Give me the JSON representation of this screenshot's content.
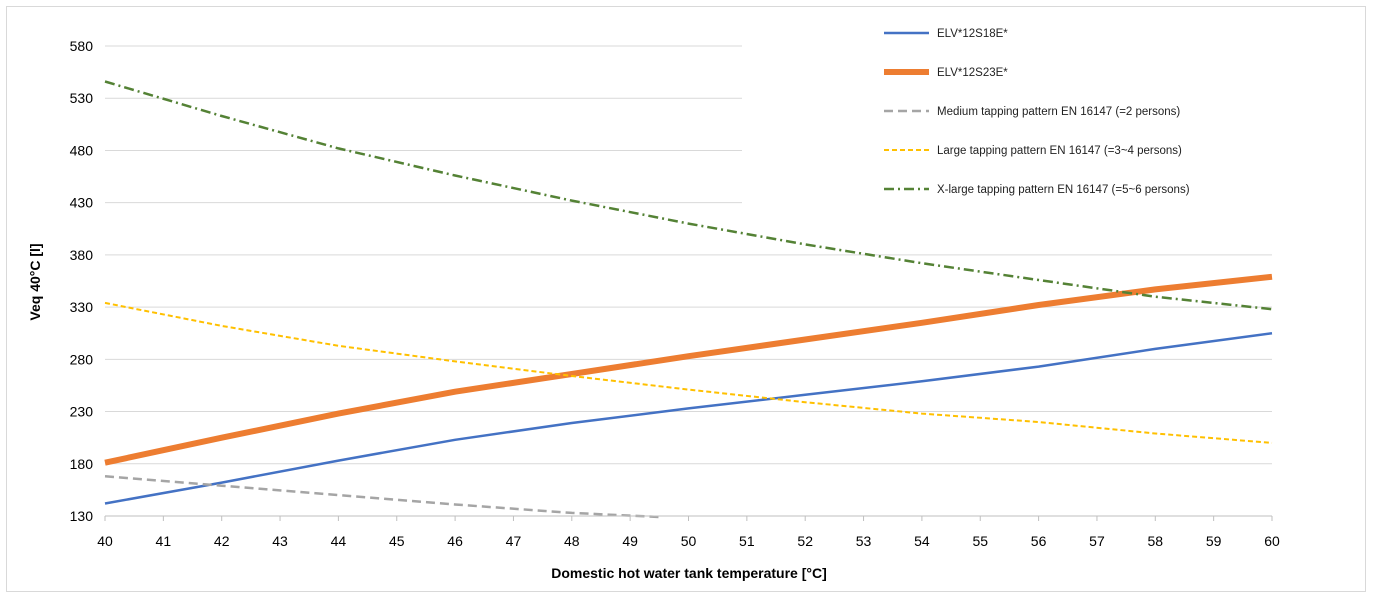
{
  "chart_data": {
    "type": "line",
    "xlabel": "Domestic hot water tank temperature [°C]",
    "ylabel": "Veq 40°C [l]",
    "xlim": [
      40,
      60
    ],
    "ylim": [
      130,
      580
    ],
    "xticks": [
      40,
      41,
      42,
      43,
      44,
      45,
      46,
      47,
      48,
      49,
      50,
      51,
      52,
      53,
      54,
      55,
      56,
      57,
      58,
      59,
      60
    ],
    "yticks": [
      130,
      180,
      230,
      280,
      330,
      380,
      430,
      480,
      530,
      580
    ],
    "grid": "horizontal",
    "legend_position": "top-right",
    "series": [
      {
        "name": "ELV*12S18E*",
        "color": "#4472C4",
        "style": "solid",
        "width": 2.5,
        "x": [
          40,
          42,
          44,
          46,
          48,
          50,
          52,
          54,
          56,
          58,
          60
        ],
        "y": [
          142,
          162,
          183,
          203,
          219,
          233,
          246,
          259,
          273,
          290,
          305
        ]
      },
      {
        "name": "ELV*12S23E*",
        "color": "#ED7D31",
        "style": "solid",
        "width": 6,
        "x": [
          40,
          42,
          44,
          46,
          48,
          50,
          52,
          54,
          56,
          58,
          60
        ],
        "y": [
          181,
          205,
          228,
          249,
          266,
          283,
          299,
          315,
          332,
          347,
          359
        ]
      },
      {
        "name": "Medium tapping pattern EN 16147 (=2 persons)",
        "color": "#A5A5A5",
        "style": "dashed",
        "width": 2.5,
        "x": [
          40,
          42,
          44,
          46,
          48,
          49.5
        ],
        "y": [
          168,
          159,
          150,
          141,
          133,
          129
        ]
      },
      {
        "name": "Large tapping pattern EN 16147 (=3~4 persons)",
        "color": "#FFC000",
        "style": "dashed-small",
        "width": 2,
        "x": [
          40,
          42,
          44,
          46,
          48,
          50,
          52,
          54,
          56,
          58,
          60
        ],
        "y": [
          334,
          312,
          293,
          278,
          264,
          251,
          239,
          228,
          220,
          209,
          200
        ]
      },
      {
        "name": "X-large tapping pattern EN 16147 (=5~6 persons)",
        "color": "#548235",
        "style": "dash-dot",
        "width": 2.5,
        "x": [
          40,
          42,
          44,
          46,
          48,
          50,
          52,
          54,
          56,
          58,
          60
        ],
        "y": [
          546,
          513,
          482,
          456,
          432,
          410,
          390,
          372,
          356,
          340,
          328
        ]
      }
    ]
  }
}
